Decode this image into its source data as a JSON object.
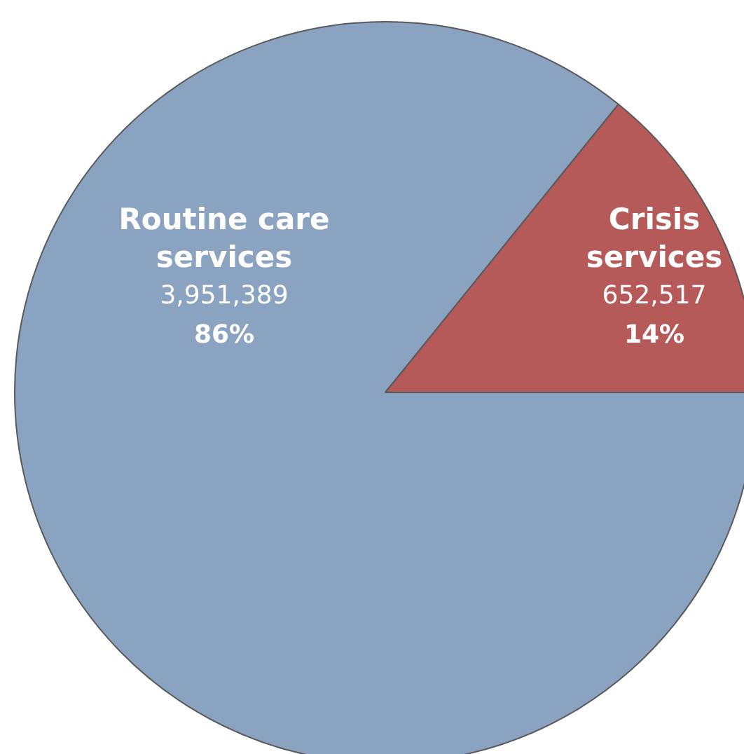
{
  "chart_data": {
    "type": "pie",
    "categories": [
      "Routine care services",
      "Crisis services"
    ],
    "values": [
      3951389,
      652517
    ],
    "colors": [
      "#8aa3c1",
      "#b55a58"
    ],
    "value_labels": [
      "3,951,389",
      "652,517"
    ],
    "annotations": [
      "86%",
      "14%"
    ],
    "legend": false
  }
}
